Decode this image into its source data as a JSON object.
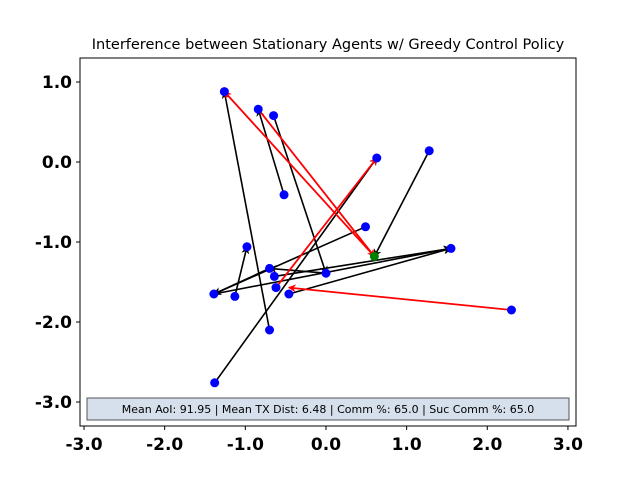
{
  "chart_data": {
    "type": "scatter",
    "title": "Interference between Stationary Agents w/ Greedy Control Policy",
    "xlabel": "",
    "ylabel": "",
    "xlim": [
      -3.05,
      3.1
    ],
    "ylim": [
      -3.3,
      1.3
    ],
    "xticks": [
      -3.0,
      -2.0,
      -1.0,
      0.0,
      1.0,
      2.0,
      3.0
    ],
    "yticks": [
      -3.0,
      -2.0,
      -1.0,
      0.0,
      1.0
    ],
    "xtick_labels": [
      "-3.0",
      "-2.0",
      "-1.0",
      "0.0",
      "1.0",
      "2.0",
      "3.0"
    ],
    "ytick_labels": [
      "-3.0",
      "-2.0",
      "-1.0",
      "0.0",
      "1.0"
    ],
    "grid": false,
    "agents": [
      {
        "x": -1.26,
        "y": 0.88
      },
      {
        "x": -0.84,
        "y": 0.66
      },
      {
        "x": -0.65,
        "y": 0.58
      },
      {
        "x": 0.63,
        "y": 0.05
      },
      {
        "x": 1.28,
        "y": 0.14
      },
      {
        "x": -0.52,
        "y": -0.41
      },
      {
        "x": 0.49,
        "y": -0.81
      },
      {
        "x": -0.98,
        "y": -1.06
      },
      {
        "x": 1.55,
        "y": -1.08
      },
      {
        "x": -0.7,
        "y": -1.33
      },
      {
        "x": 0.0,
        "y": -1.39
      },
      {
        "x": -0.64,
        "y": -1.43
      },
      {
        "x": -0.62,
        "y": -1.57
      },
      {
        "x": -0.46,
        "y": -1.65
      },
      {
        "x": -1.39,
        "y": -1.65
      },
      {
        "x": -1.13,
        "y": -1.68
      },
      {
        "x": 2.3,
        "y": -1.85
      },
      {
        "x": -0.7,
        "y": -2.1
      },
      {
        "x": -1.38,
        "y": -2.76
      }
    ],
    "access_point": {
      "x": 0.6,
      "y": -1.18,
      "color": "#008000"
    },
    "transmissions": [
      {
        "from": [
          -0.7,
          -2.1
        ],
        "to": [
          -1.26,
          0.88
        ],
        "color": "#000000"
      },
      {
        "from": [
          -1.38,
          -2.76
        ],
        "to": [
          0.63,
          0.05
        ],
        "color": "#000000"
      },
      {
        "from": [
          -0.52,
          -0.41
        ],
        "to": [
          -0.84,
          0.66
        ],
        "color": "#000000"
      },
      {
        "from": [
          -0.65,
          0.58
        ],
        "to": [
          0.0,
          -1.39
        ],
        "color": "#000000"
      },
      {
        "from": [
          1.28,
          0.14
        ],
        "to": [
          0.6,
          -1.18
        ],
        "color": "#000000"
      },
      {
        "from": [
          0.49,
          -0.81
        ],
        "to": [
          -1.39,
          -1.65
        ],
        "color": "#000000"
      },
      {
        "from": [
          -1.13,
          -1.68
        ],
        "to": [
          -0.98,
          -1.06
        ],
        "color": "#000000"
      },
      {
        "from": [
          -1.39,
          -1.65
        ],
        "to": [
          1.55,
          -1.08
        ],
        "color": "#000000"
      },
      {
        "from": [
          -0.46,
          -1.65
        ],
        "to": [
          1.55,
          -1.08
        ],
        "color": "#000000"
      },
      {
        "from": [
          0.0,
          -1.39
        ],
        "to": [
          -0.7,
          -1.33
        ],
        "color": "#000000"
      },
      {
        "from": [
          -0.7,
          -1.33
        ],
        "to": [
          -1.39,
          -1.65
        ],
        "color": "#000000"
      },
      {
        "from": [
          -0.64,
          -1.43
        ],
        "to": [
          1.55,
          -1.08
        ],
        "color": "#000000"
      },
      {
        "from": [
          0.6,
          -1.18
        ],
        "to": [
          -1.26,
          0.88
        ],
        "color": "#ff0000"
      },
      {
        "from": [
          -0.84,
          0.66
        ],
        "to": [
          0.6,
          -1.18
        ],
        "color": "#ff0000"
      },
      {
        "from": [
          -0.62,
          -1.57
        ],
        "to": [
          0.63,
          0.05
        ],
        "color": "#ff0000"
      },
      {
        "from": [
          2.3,
          -1.85
        ],
        "to": [
          -0.46,
          -1.57
        ],
        "color": "#ff0000"
      }
    ],
    "agent_color": "#0000ff",
    "info_box_text": "Mean AoI: 91.95 | Mean TX Dist: 6.48 | Comm %: 65.0 | Suc Comm %: 65.0"
  }
}
